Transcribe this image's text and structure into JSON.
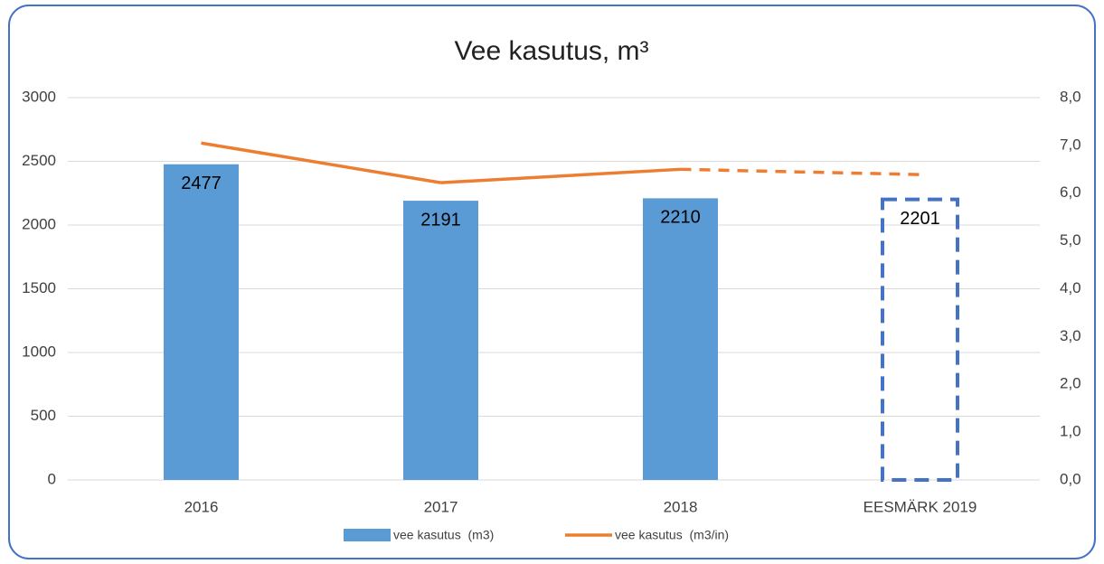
{
  "chart_data": {
    "type": "combo",
    "title": "Vee kasutus, m³",
    "categories": [
      "2016",
      "2017",
      "2018",
      "EESMÄRK 2019"
    ],
    "series": [
      {
        "name": "vee kasutus  (m3)",
        "type": "bar",
        "color": "#5b9bd5",
        "values": [
          2477,
          2191,
          2210,
          2201
        ],
        "bar_styles": [
          "solid",
          "solid",
          "solid",
          "dashed"
        ],
        "dashed_color": "#4472c4"
      },
      {
        "name": "vee kasutus  (m3/in)",
        "type": "line",
        "axis": "y2",
        "color": "#ed7d31",
        "values": [
          7.05,
          6.22,
          6.5,
          6.39
        ],
        "segment_styles": [
          "solid",
          "solid",
          "dashed"
        ]
      }
    ],
    "ylim": [
      0,
      3000
    ],
    "yticks": [
      0,
      500,
      1000,
      1500,
      2000,
      2500,
      3000
    ],
    "y2lim": [
      0,
      8
    ],
    "y2ticks": [
      {
        "value": 0,
        "label": "0,0"
      },
      {
        "value": 1,
        "label": "1,0"
      },
      {
        "value": 2,
        "label": "2,0"
      },
      {
        "value": 3,
        "label": "3,0"
      },
      {
        "value": 4,
        "label": "4,0"
      },
      {
        "value": 5,
        "label": "5,0"
      },
      {
        "value": 6,
        "label": "6,0"
      },
      {
        "value": 7,
        "label": "7,0"
      },
      {
        "value": 8,
        "label": "8,0"
      }
    ],
    "grid": true,
    "data_labels": true,
    "legend": "bottom"
  }
}
